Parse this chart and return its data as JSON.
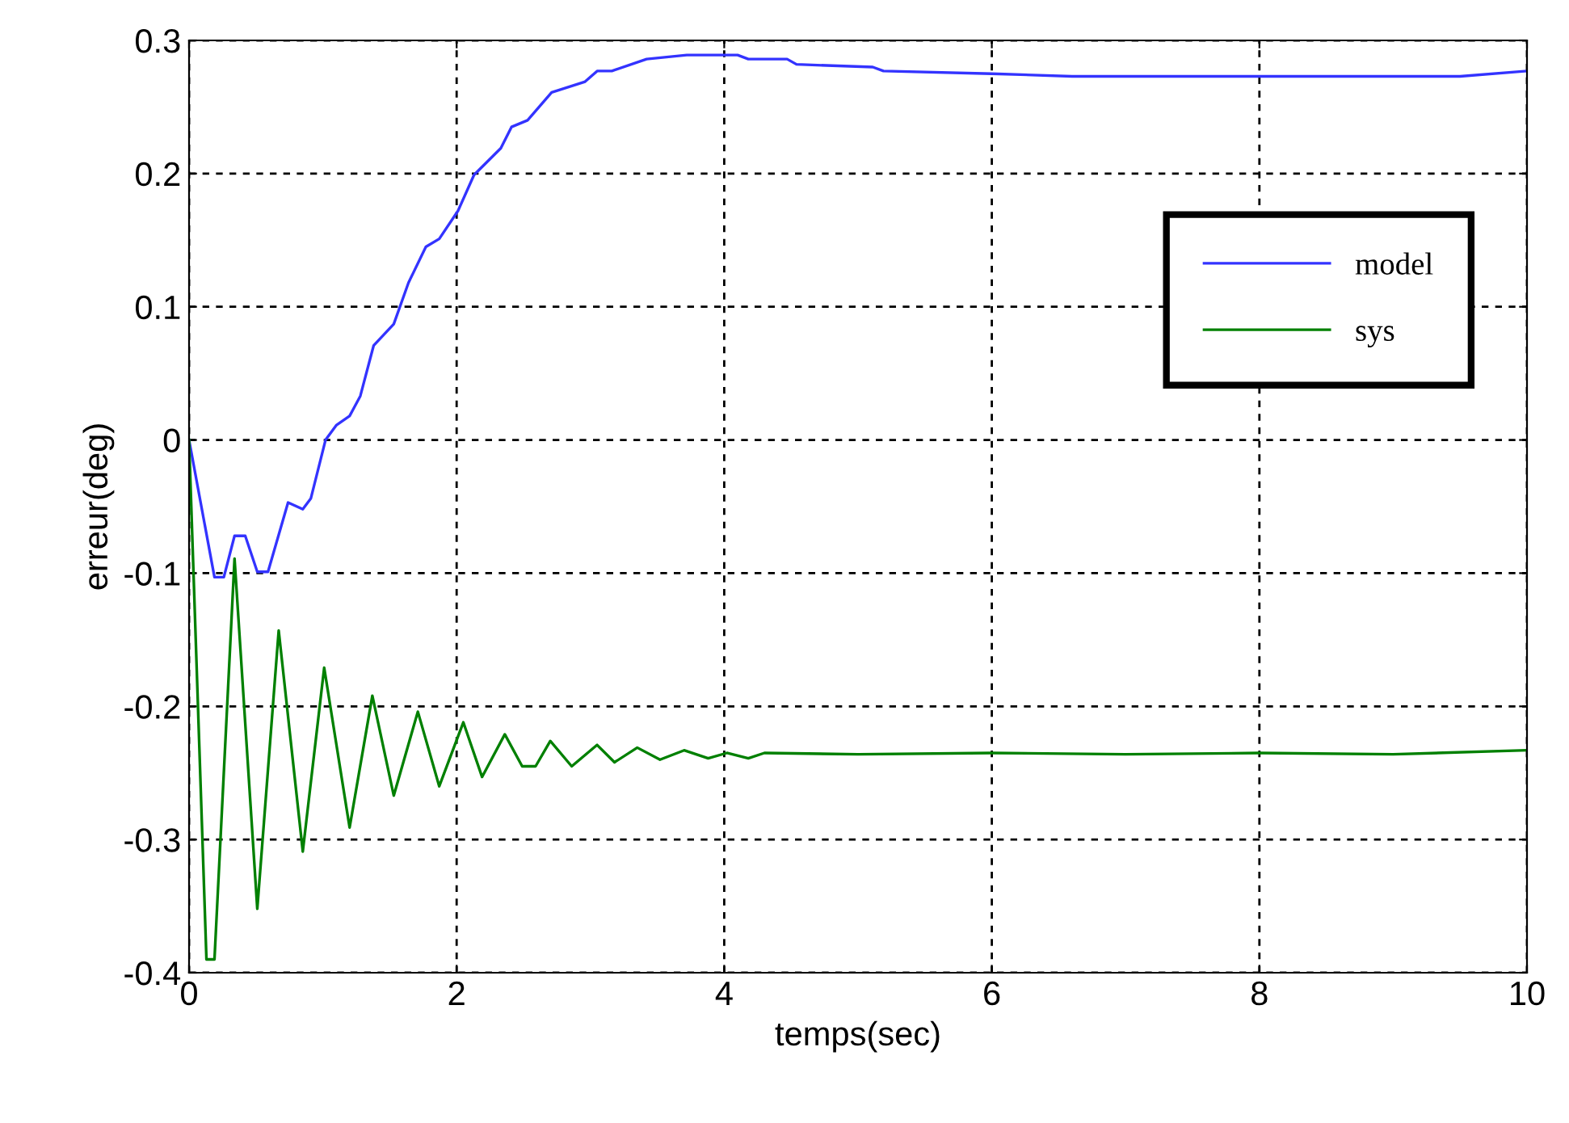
{
  "chart_data": {
    "type": "line",
    "xlabel": "temps(sec)",
    "ylabel": "erreur(deg)",
    "xlim": [
      0,
      10
    ],
    "xticks": [
      0,
      2,
      4,
      6,
      8,
      10
    ],
    "ylim": [
      -0.4,
      0.3
    ],
    "yticks": [
      -0.4,
      -0.3,
      -0.2,
      -0.1,
      0,
      0.1,
      0.2,
      0.3
    ],
    "grid": true,
    "legend": "top right",
    "line_style": "solid",
    "marker": "none",
    "series": [
      {
        "name": "model",
        "color": "#3333ff",
        "x": [
          0,
          0.19,
          0.26,
          0.34,
          0.42,
          0.51,
          0.59,
          0.74,
          0.85,
          0.91,
          1.02,
          1.1,
          1.2,
          1.28,
          1.38,
          1.53,
          1.64,
          1.77,
          1.87,
          2.01,
          2.13,
          2.33,
          2.41,
          2.53,
          2.71,
          2.96,
          3.05,
          3.16,
          3.42,
          3.72,
          4.1,
          4.18,
          4.47,
          4.54,
          5.11,
          5.19,
          6.0,
          6.6,
          8.0,
          9.5,
          10
        ],
        "values": [
          0,
          -0.103,
          -0.103,
          -0.072,
          -0.072,
          -0.099,
          -0.099,
          -0.047,
          -0.052,
          -0.044,
          0,
          0.011,
          0.018,
          0.033,
          0.071,
          0.087,
          0.118,
          0.145,
          0.151,
          0.172,
          0.199,
          0.219,
          0.235,
          0.24,
          0.261,
          0.269,
          0.277,
          0.277,
          0.286,
          0.289,
          0.289,
          0.286,
          0.286,
          0.282,
          0.28,
          0.277,
          0.275,
          0.273,
          0.273,
          0.273,
          0.277
        ]
      },
      {
        "name": "sys",
        "color": "#008000",
        "x": [
          0,
          0.13,
          0.19,
          0.34,
          0.51,
          0.67,
          0.85,
          1.01,
          1.2,
          1.37,
          1.53,
          1.71,
          1.87,
          2.05,
          2.19,
          2.36,
          2.49,
          2.59,
          2.7,
          2.86,
          3.05,
          3.18,
          3.35,
          3.52,
          3.7,
          3.88,
          4.02,
          4.18,
          4.3,
          5.0,
          6.0,
          7.0,
          8.0,
          9.0,
          10
        ],
        "values": [
          0,
          -0.39,
          -0.39,
          -0.089,
          -0.352,
          -0.143,
          -0.309,
          -0.171,
          -0.291,
          -0.192,
          -0.267,
          -0.204,
          -0.26,
          -0.212,
          -0.253,
          -0.221,
          -0.245,
          -0.245,
          -0.226,
          -0.245,
          -0.229,
          -0.242,
          -0.231,
          -0.24,
          -0.233,
          -0.239,
          -0.235,
          -0.239,
          -0.235,
          -0.236,
          -0.235,
          -0.236,
          -0.235,
          -0.236,
          -0.233
        ]
      }
    ]
  }
}
